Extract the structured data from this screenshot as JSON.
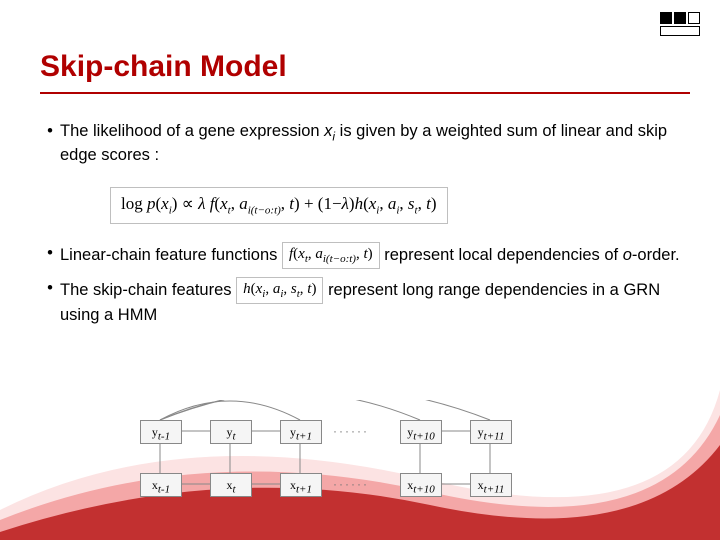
{
  "title": "Skip-chain Model",
  "bullets": {
    "b1_pre": "The likelihood of a gene expression ",
    "b1_var": "x",
    "b1_sub": "i",
    "b1_post": " is given by a weighted sum of linear and skip edge scores :",
    "b2_pre": "Linear-chain feature functions ",
    "b2_post": " represent local dependencies of ",
    "b2_ord": "o",
    "b2_end": "-order.",
    "b3_pre": "The skip-chain features ",
    "b3_post": " represent long range dependencies in a GRN using a HMM"
  },
  "formula_main": "log p(xᵢ) ∝ λ f(xₜ, a_{i(t−o:t)}, t) + (1−λ) h(xᵢ, aᵢ, sₜ, t)",
  "formula_f": "f(xₜ, a_{i(t−o:t)}, t)",
  "formula_h": "h(xᵢ, aᵢ, sₜ, t)",
  "diagram": {
    "y_row": [
      "y",
      "y",
      "y",
      "y",
      "y"
    ],
    "y_sub": [
      "t-1",
      "t",
      "t+1",
      "t+10",
      "t+11"
    ],
    "x_row": [
      "x",
      "x",
      "x",
      "x",
      "x"
    ],
    "x_sub": [
      "t-1",
      "t",
      "t+1",
      "t+10",
      "t+11"
    ],
    "dots": "······",
    "positions_x": [
      0,
      70,
      140,
      260,
      330
    ],
    "node_color": "#f5f5f5",
    "border_color": "#888888"
  },
  "colors": {
    "title": "#b00000",
    "swoosh_red": "#c23030",
    "swoosh_pink": "#f4a7a7",
    "swoosh_light": "#fce3e3"
  }
}
